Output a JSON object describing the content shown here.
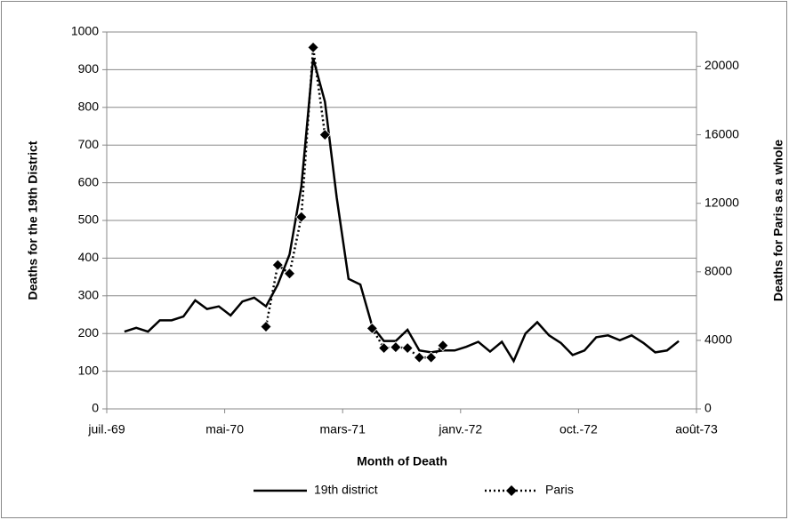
{
  "chart_data": {
    "type": "line",
    "x_label": "Month of Death",
    "y_label": "Deaths for the 19th District",
    "y2_label": "Deaths for Paris as a whole",
    "categories": [
      "juil.-69",
      null,
      null,
      null,
      null,
      null,
      null,
      null,
      null,
      null,
      "mai-70",
      null,
      null,
      null,
      null,
      null,
      null,
      null,
      null,
      null,
      "mars-71",
      null,
      null,
      null,
      null,
      null,
      null,
      null,
      null,
      null,
      "janv.-72",
      null,
      null,
      null,
      null,
      null,
      null,
      null,
      null,
      null,
      "oct.-72",
      null,
      null,
      null,
      null,
      null,
      null,
      null,
      null,
      null,
      "août-73"
    ],
    "series": [
      {
        "name": "19th district",
        "color": "#000000",
        "line_style": "solid",
        "marker": "none",
        "values": [
          null,
          205,
          215,
          205,
          235,
          235,
          245,
          288,
          265,
          272,
          248,
          285,
          295,
          272,
          330,
          410,
          590,
          930,
          815,
          560,
          345,
          330,
          220,
          180,
          180,
          210,
          155,
          150,
          155,
          155,
          165,
          178,
          152,
          178,
          127,
          200,
          230,
          195,
          175,
          143,
          155,
          190,
          195,
          182,
          195,
          175,
          150,
          155,
          180,
          null,
          null
        ]
      },
      {
        "name": "Paris",
        "color": "#000000",
        "line_style": "dotted",
        "marker": "diamond",
        "axis": "y2",
        "values": [
          null,
          null,
          null,
          null,
          null,
          null,
          null,
          null,
          null,
          null,
          null,
          null,
          null,
          4800,
          8400,
          7900,
          11200,
          21100,
          16000,
          null,
          null,
          null,
          4700,
          3550,
          3600,
          3550,
          3000,
          3000,
          3700,
          null,
          null,
          null,
          null,
          null,
          null,
          null,
          null,
          null,
          null,
          null,
          null,
          null,
          null,
          null,
          null,
          null,
          null,
          null,
          null,
          null,
          null
        ]
      }
    ],
    "ylim": [
      0,
      1000
    ],
    "yticks": [
      0,
      100,
      200,
      300,
      400,
      500,
      600,
      700,
      800,
      900,
      1000
    ],
    "y2lim": [
      0,
      22000
    ],
    "y2ticks": [
      0,
      4000,
      8000,
      12000,
      16000,
      20000
    ],
    "grid": true,
    "legend": "bottom"
  }
}
